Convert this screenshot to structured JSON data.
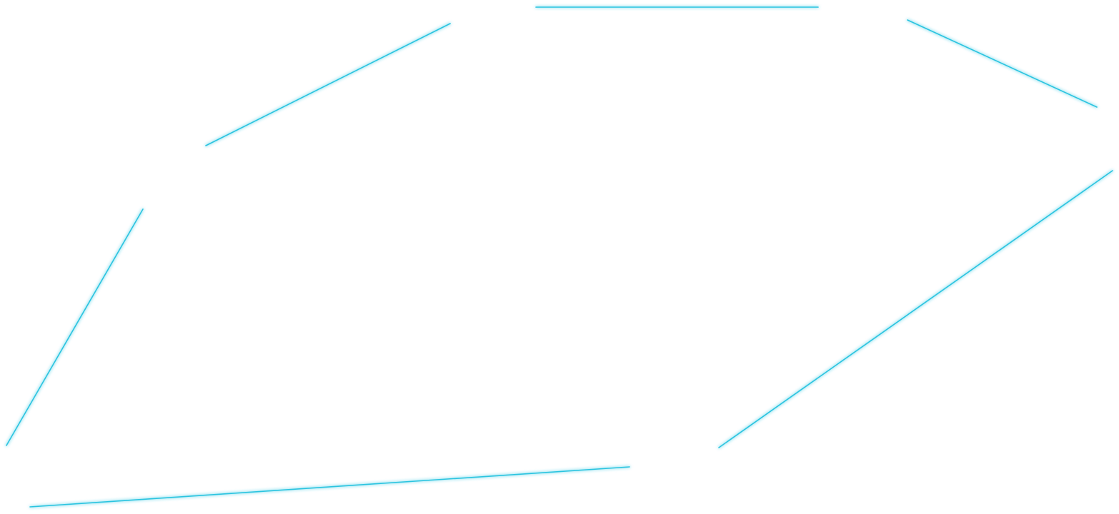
{
  "colors": {
    "background": "#ffffff",
    "line": "#2bc4e0",
    "glow": "#9be8f5"
  },
  "segments_count": 6
}
